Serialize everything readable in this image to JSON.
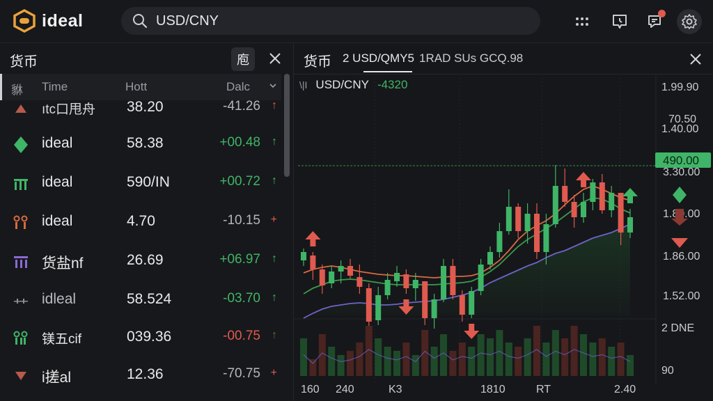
{
  "app": {
    "name": "ideal"
  },
  "search": {
    "value": "USD/CNY"
  },
  "top_icons": [
    "grid-icon",
    "clock-tag-icon",
    "chat-notification-icon",
    "settings-icon"
  ],
  "left_panel": {
    "title": "货币",
    "sort_button": "庖",
    "columns": {
      "c0": "貅",
      "c1": "Time",
      "c2": "Hott",
      "c3": "Dalc"
    },
    "rows": [
      {
        "icon": "down-triangle-icon",
        "name": "ıtc口甩舟",
        "price": "38.20",
        "change": "-41.26",
        "arrow": "↑",
        "trend": "down"
      },
      {
        "icon": "diamond-icon",
        "name": "ideal",
        "price": "58.38",
        "change": "+00.48",
        "arrow": "↑",
        "trend": "up"
      },
      {
        "icon": "bars-icon",
        "name": "ideal",
        "price": "590/IN",
        "change": "+00.72",
        "arrow": "↑",
        "trend": "up"
      },
      {
        "icon": "bars-icon",
        "name": "ideal",
        "price": "4.70",
        "change": "-10.15",
        "arrow": "+",
        "trend": "down"
      },
      {
        "icon": "bars-icon",
        "name": "货盐nf",
        "price": "26.69",
        "change": "+06.97",
        "arrow": "↑",
        "trend": "up"
      },
      {
        "icon": "bars-icon",
        "name": "idleal",
        "price": "58.524",
        "change": "-03.70",
        "arrow": "↑",
        "trend": "down"
      },
      {
        "icon": "bars-icon",
        "name": "镁五cif",
        "price": "039.36",
        "change": "-00.75",
        "arrow": "↑",
        "trend": "down"
      },
      {
        "icon": "down-triangle-icon",
        "name": "i搓al",
        "price": "12.36",
        "change": "-70.75",
        "arrow": "+",
        "trend": "down"
      }
    ]
  },
  "chart_panel": {
    "title": "货币",
    "tabs": [
      "2 USD/QMY5",
      "1RAD SUs GCQ.98"
    ],
    "legend": {
      "symbol": "\\|I",
      "pair": "USD/CNY",
      "change": "-4320"
    },
    "price_labels": [
      "1.99.90",
      "70.50",
      "1.40.00",
      "3.30.00",
      "1.80.00",
      "1.86.00",
      "1.52.00"
    ],
    "current_price": "490.00",
    "volume_labels": [
      "2 DNE",
      "90"
    ],
    "time_labels": [
      "160",
      "240",
      "K3",
      "1810",
      "RT",
      "2.40"
    ]
  },
  "chart_data": {
    "type": "candlestick",
    "series": [
      {
        "o": 312,
        "h": 295,
        "l": 320,
        "c": 300
      },
      {
        "o": 305,
        "h": 300,
        "l": 340,
        "c": 325
      },
      {
        "o": 325,
        "h": 318,
        "l": 360,
        "c": 348
      },
      {
        "o": 345,
        "h": 320,
        "l": 352,
        "c": 328
      },
      {
        "o": 328,
        "h": 312,
        "l": 345,
        "c": 320
      },
      {
        "o": 320,
        "h": 310,
        "l": 338,
        "c": 334
      },
      {
        "o": 336,
        "h": 318,
        "l": 360,
        "c": 350
      },
      {
        "o": 352,
        "h": 345,
        "l": 420,
        "c": 400
      },
      {
        "o": 398,
        "h": 350,
        "l": 405,
        "c": 362
      },
      {
        "o": 362,
        "h": 330,
        "l": 368,
        "c": 340
      },
      {
        "o": 342,
        "h": 320,
        "l": 350,
        "c": 330
      },
      {
        "o": 332,
        "h": 325,
        "l": 360,
        "c": 352
      },
      {
        "o": 352,
        "h": 330,
        "l": 370,
        "c": 340
      },
      {
        "o": 342,
        "h": 350,
        "l": 405,
        "c": 395
      },
      {
        "o": 395,
        "h": 360,
        "l": 410,
        "c": 368
      },
      {
        "o": 368,
        "h": 310,
        "l": 372,
        "c": 320
      },
      {
        "o": 320,
        "h": 310,
        "l": 368,
        "c": 362
      },
      {
        "o": 362,
        "h": 355,
        "l": 400,
        "c": 390
      },
      {
        "o": 390,
        "h": 350,
        "l": 395,
        "c": 356
      },
      {
        "o": 356,
        "h": 310,
        "l": 362,
        "c": 318
      },
      {
        "o": 318,
        "h": 292,
        "l": 325,
        "c": 300
      },
      {
        "o": 300,
        "h": 258,
        "l": 308,
        "c": 270
      },
      {
        "o": 270,
        "h": 210,
        "l": 275,
        "c": 235
      },
      {
        "o": 235,
        "h": 230,
        "l": 280,
        "c": 270
      },
      {
        "o": 270,
        "h": 230,
        "l": 288,
        "c": 245
      },
      {
        "o": 245,
        "h": 230,
        "l": 310,
        "c": 300
      },
      {
        "o": 300,
        "h": 245,
        "l": 318,
        "c": 260
      },
      {
        "o": 260,
        "h": 175,
        "l": 265,
        "c": 205
      },
      {
        "o": 205,
        "h": 180,
        "l": 235,
        "c": 228
      },
      {
        "o": 228,
        "h": 218,
        "l": 265,
        "c": 250
      },
      {
        "o": 250,
        "h": 215,
        "l": 258,
        "c": 228
      },
      {
        "o": 228,
        "h": 195,
        "l": 240,
        "c": 200
      },
      {
        "o": 200,
        "h": 188,
        "l": 245,
        "c": 240
      },
      {
        "o": 240,
        "h": 205,
        "l": 250,
        "c": 215
      },
      {
        "o": 215,
        "h": 220,
        "l": 290,
        "c": 272
      },
      {
        "o": 272,
        "h": 238,
        "l": 280,
        "c": 250
      }
    ],
    "ma_orange": [
      330,
      325,
      322,
      320,
      322,
      325,
      328,
      330,
      332,
      333,
      334,
      334,
      335,
      336,
      337,
      336,
      335,
      335,
      334,
      330,
      322,
      312,
      298,
      282,
      270,
      262,
      255,
      245,
      232,
      220,
      210,
      205,
      210,
      216,
      222,
      226
    ],
    "ma_green": [
      360,
      352,
      347,
      342,
      340,
      339,
      340,
      342,
      344,
      346,
      347,
      347,
      347,
      347,
      347,
      346,
      345,
      344,
      342,
      336,
      328,
      318,
      305,
      292,
      282,
      274,
      266,
      258,
      248,
      238,
      228,
      222,
      224,
      230,
      238,
      244
    ],
    "ma_purple": [
      395,
      388,
      382,
      378,
      376,
      374,
      373,
      374,
      376,
      376,
      375,
      373,
      372,
      371,
      370,
      368,
      365,
      362,
      358,
      352,
      344,
      338,
      332,
      326,
      320,
      315,
      308,
      302,
      298,
      292,
      286,
      280,
      276,
      272,
      266,
      260
    ],
    "markers": [
      {
        "index": 1,
        "type": "up",
        "color": "#e05a4f"
      },
      {
        "index": 11,
        "type": "down",
        "color": "#e05a4f"
      },
      {
        "index": 18,
        "type": "down",
        "color": "#e05a4f"
      },
      {
        "index": 30,
        "type": "up",
        "color": "#e05a4f"
      },
      {
        "index": 35,
        "type": "up",
        "color": "#3fb567"
      }
    ],
    "volumes": [
      45,
      20,
      50,
      35,
      25,
      30,
      40,
      60,
      45,
      35,
      30,
      40,
      25,
      55,
      35,
      50,
      30,
      40,
      35,
      50,
      45,
      55,
      40,
      35,
      45,
      60,
      40,
      55,
      45,
      60,
      50,
      40,
      45,
      35,
      40,
      25
    ],
    "colors": {
      "up": "#3fb567",
      "down": "#e05a4f",
      "ma_orange": "#d86a40",
      "ma_green": "#3a9a4e",
      "ma_purple": "#6e63c8"
    }
  }
}
